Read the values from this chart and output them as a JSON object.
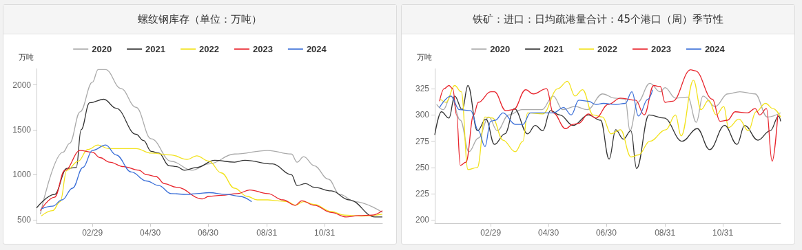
{
  "chart_data": [
    {
      "type": "line",
      "title": "螺纹钢库存（单位：万吨）",
      "ylabel": "万吨",
      "legend": "top",
      "grid": false,
      "marker": "none",
      "line_style": "solid",
      "xlim": [
        "--01-01",
        "--12-31"
      ],
      "xticks": [
        {
          "value": "--02-29",
          "label": "02/29"
        },
        {
          "value": "--04-30",
          "label": "04/30"
        },
        {
          "value": "--06-30",
          "label": "06/30"
        },
        {
          "value": "--08-31",
          "label": "08/31"
        },
        {
          "value": "--10-31",
          "label": "10/31"
        }
      ],
      "ylim": [
        460,
        2180
      ],
      "yticks": [
        500,
        1000,
        1500,
        2000
      ],
      "series": [
        {
          "name": "2020",
          "color": "#aaaaaa",
          "x": [
            "--01-05",
            "--01-29",
            "--02-05",
            "--02-16",
            "--02-29",
            "--03-06",
            "--03-14",
            "--03-30",
            "--04-15",
            "--05-01",
            "--05-22",
            "--06-13",
            "--07-01",
            "--07-28",
            "--09-01",
            "--09-26",
            "--10-02",
            "--10-09",
            "--10-20",
            "--11-04",
            "--11-16",
            "--12-02",
            "--12-31"
          ],
          "values": [
            560,
            1250,
            1350,
            1700,
            2030,
            2170,
            2170,
            1960,
            1750,
            1400,
            1150,
            1050,
            1120,
            1230,
            1270,
            1230,
            1140,
            1200,
            1100,
            950,
            780,
            700,
            580
          ]
        },
        {
          "name": "2021",
          "color": "#333333",
          "x": [
            "--01-01",
            "--01-20",
            "--02-02",
            "--02-12",
            "--02-17",
            "--02-26",
            "--03-12",
            "--03-25",
            "--04-15",
            "--04-23",
            "--05-01",
            "--05-09",
            "--05-20",
            "--05-28",
            "--06-05",
            "--06-18",
            "--07-07",
            "--07-28",
            "--08-08",
            "--09-06",
            "--09-26",
            "--10-02",
            "--10-11",
            "--10-20",
            "--11-07",
            "--11-26",
            "--12-23",
            "--12-31"
          ],
          "values": [
            630,
            780,
            1070,
            1080,
            1500,
            1800,
            1840,
            1740,
            1450,
            1380,
            1260,
            1240,
            1100,
            1090,
            1050,
            1080,
            1160,
            1140,
            1160,
            1120,
            1000,
            880,
            900,
            860,
            820,
            720,
            530,
            530
          ]
        },
        {
          "name": "2022",
          "color": "#f2e21c",
          "x": [
            "--01-06",
            "--01-18",
            "--01-26",
            "--02-02",
            "--02-14",
            "--02-24",
            "--03-06",
            "--03-17",
            "--04-05",
            "--04-15",
            "--05-01",
            "--05-22",
            "--06-08",
            "--06-18",
            "--07-01",
            "--07-14",
            "--07-28",
            "--08-10",
            "--08-21",
            "--09-01",
            "--09-11",
            "--09-22",
            "--09-30",
            "--10-09",
            "--10-20",
            "--11-07",
            "--11-21",
            "--12-09",
            "--12-31"
          ],
          "values": [
            540,
            600,
            700,
            1050,
            1150,
            1280,
            1330,
            1290,
            1290,
            1290,
            1240,
            1220,
            1170,
            1210,
            1150,
            1020,
            850,
            760,
            720,
            720,
            710,
            700,
            660,
            700,
            670,
            590,
            550,
            540,
            560
          ]
        },
        {
          "name": "2023",
          "color": "#e8242c",
          "x": [
            "--01-05",
            "--01-20",
            "--01-31",
            "--02-16",
            "--02-29",
            "--03-08",
            "--03-18",
            "--04-02",
            "--04-18",
            "--04-26",
            "--05-06",
            "--05-15",
            "--05-28",
            "--06-24",
            "--07-01",
            "--07-14",
            "--07-31",
            "--08-13",
            "--09-01",
            "--09-17",
            "--09-30",
            "--10-07",
            "--10-20",
            "--11-07",
            "--11-23",
            "--12-06",
            "--12-20",
            "--12-31"
          ],
          "values": [
            600,
            750,
            1050,
            1270,
            1250,
            1190,
            1140,
            1090,
            1050,
            1000,
            980,
            900,
            860,
            730,
            760,
            770,
            790,
            830,
            790,
            720,
            660,
            710,
            660,
            580,
            530,
            545,
            550,
            600
          ]
        },
        {
          "name": "2024",
          "color": "#3b6fd8",
          "x": [
            "--01-06",
            "--01-18",
            "--01-28",
            "--02-08",
            "--02-19",
            "--02-29",
            "--03-14",
            "--03-25",
            "--04-10",
            "--04-26",
            "--05-09",
            "--05-22",
            "--06-08",
            "--06-18",
            "--07-01",
            "--07-20",
            "--08-02",
            "--08-15"
          ],
          "values": [
            620,
            650,
            720,
            850,
            1080,
            1270,
            1330,
            1220,
            1030,
            930,
            880,
            790,
            780,
            790,
            800,
            780,
            760,
            700
          ]
        }
      ]
    },
    {
      "type": "line",
      "title": "铁矿：进口：日均疏港量合计：45个港口（周）季节性",
      "ylabel": "万吨",
      "legend": "top",
      "grid": false,
      "marker": "none",
      "line_style": "solid",
      "xlim": [
        "--01-01",
        "--12-31"
      ],
      "xticks": [
        {
          "value": "--02-29",
          "label": "02/29"
        },
        {
          "value": "--04-30",
          "label": "04/30"
        },
        {
          "value": "--06-30",
          "label": "06/30"
        },
        {
          "value": "--08-31",
          "label": "08/31"
        },
        {
          "value": "--10-31",
          "label": "10/31"
        }
      ],
      "ylim": [
        197,
        344
      ],
      "yticks": [
        200,
        225,
        250,
        275,
        300,
        325
      ],
      "series": [
        {
          "name": "2020",
          "color": "#aaaaaa",
          "x": [
            "--01-03",
            "--01-10",
            "--01-18",
            "--01-28",
            "--02-06",
            "--02-16",
            "--02-27",
            "--03-07",
            "--03-19",
            "--04-02",
            "--04-23",
            "--05-05",
            "--05-15",
            "--05-28",
            "--06-10",
            "--06-26",
            "--07-09",
            "--07-20",
            "--07-25",
            "--08-02",
            "--08-15",
            "--08-26",
            "--08-31",
            "--09-11",
            "--09-24",
            "--10-03",
            "--10-10",
            "--10-23",
            "--11-05",
            "--11-18",
            "--12-04",
            "--12-17",
            "--12-31"
          ],
          "values": [
            310,
            305,
            318,
            295,
            265,
            278,
            298,
            285,
            300,
            305,
            305,
            318,
            305,
            308,
            305,
            320,
            316,
            315,
            285,
            312,
            330,
            322,
            326,
            316,
            317,
            293,
            318,
            308,
            320,
            322,
            320,
            298,
            302
          ]
        },
        {
          "name": "2021",
          "color": "#333333",
          "x": [
            "--01-01",
            "--01-08",
            "--01-16",
            "--01-22",
            "--01-30",
            "--02-05",
            "--02-15",
            "--02-24",
            "--03-04",
            "--03-15",
            "--03-25",
            "--04-08",
            "--04-16",
            "--04-24",
            "--05-02",
            "--05-12",
            "--05-26",
            "--06-11",
            "--06-24",
            "--07-03",
            "--07-10",
            "--07-18",
            "--07-26",
            "--08-01",
            "--08-14",
            "--08-30",
            "--09-18",
            "--10-04",
            "--10-17",
            "--11-02",
            "--11-15",
            "--11-23",
            "--12-07",
            "--12-20",
            "--12-29",
            "--12-31"
          ],
          "values": [
            281,
            303,
            297,
            318,
            305,
            328,
            285,
            296,
            272,
            282,
            306,
            282,
            290,
            285,
            304,
            300,
            290,
            300,
            295,
            258,
            286,
            277,
            285,
            249,
            300,
            297,
            275,
            287,
            267,
            290,
            272,
            290,
            276,
            285,
            299,
            294
          ]
        },
        {
          "name": "2022",
          "color": "#f2e21c",
          "x": [
            "--01-07",
            "--01-13",
            "--01-22",
            "--01-29",
            "--02-05",
            "--02-15",
            "--02-23",
            "--03-02",
            "--03-13",
            "--03-26",
            "--04-03",
            "--04-08",
            "--04-24",
            "--05-10",
            "--05-20",
            "--05-28",
            "--06-05",
            "--06-16",
            "--06-26",
            "--07-05",
            "--07-15",
            "--07-26",
            "--08-03",
            "--08-15",
            "--09-01",
            "--09-11",
            "--09-17",
            "--09-30",
            "--10-08",
            "--10-16",
            "--10-24",
            "--11-01",
            "--11-06",
            "--11-17",
            "--11-27",
            "--12-05",
            "--12-15",
            "--12-23",
            "--12-31"
          ],
          "values": [
            315,
            312,
            328,
            322,
            248,
            250,
            298,
            297,
            276,
            265,
            275,
            302,
            301,
            325,
            332,
            318,
            324,
            300,
            298,
            282,
            286,
            260,
            262,
            275,
            286,
            300,
            280,
            333,
            305,
            314,
            300,
            308,
            288,
            296,
            285,
            303,
            311,
            306,
            298
          ]
        },
        {
          "name": "2023",
          "color": "#e8242c",
          "x": [
            "--01-06",
            "--01-11",
            "--01-16",
            "--01-20",
            "--01-24",
            "--01-28",
            "--02-03",
            "--02-11",
            "--02-16",
            "--02-29",
            "--03-04",
            "--03-16",
            "--03-24",
            "--04-06",
            "--04-14",
            "--04-28",
            "--05-05",
            "--05-18",
            "--05-26",
            "--06-01",
            "--06-11",
            "--06-19",
            "--07-02",
            "--07-15",
            "--07-31",
            "--08-09",
            "--08-19",
            "--08-26",
            "--08-31",
            "--09-08",
            "--09-27",
            "--10-02",
            "--10-20",
            "--10-28",
            "--11-05",
            "--11-13",
            "--11-26",
            "--12-04",
            "--12-09",
            "--12-16",
            "--12-22",
            "--12-28"
          ],
          "values": [
            313,
            325,
            328,
            325,
            300,
            252,
            255,
            300,
            312,
            322,
            322,
            304,
            305,
            324,
            320,
            325,
            302,
            287,
            291,
            292,
            301,
            297,
            310,
            316,
            314,
            300,
            328,
            327,
            312,
            313,
            343,
            342,
            315,
            294,
            295,
            303,
            302,
            306,
            300,
            306,
            256,
            300
          ]
        },
        {
          "name": "2024",
          "color": "#3b6fd8",
          "x": [
            "--01-06",
            "--01-18",
            "--01-27",
            "--02-08",
            "--02-16",
            "--02-23",
            "--02-29",
            "--03-05",
            "--03-13",
            "--03-26",
            "--04-03",
            "--04-11",
            "--05-05",
            "--05-16",
            "--05-24",
            "--06-01",
            "--06-11",
            "--06-19",
            "--06-27",
            "--07-10",
            "--07-20",
            "--07-27",
            "--08-03",
            "--08-13",
            "--08-18"
          ],
          "values": [
            307,
            318,
            305,
            304,
            285,
            270,
            294,
            295,
            302,
            291,
            291,
            302,
            302,
            307,
            300,
            314,
            313,
            310,
            311,
            310,
            311,
            322,
            299,
            315,
            324
          ]
        }
      ]
    }
  ]
}
